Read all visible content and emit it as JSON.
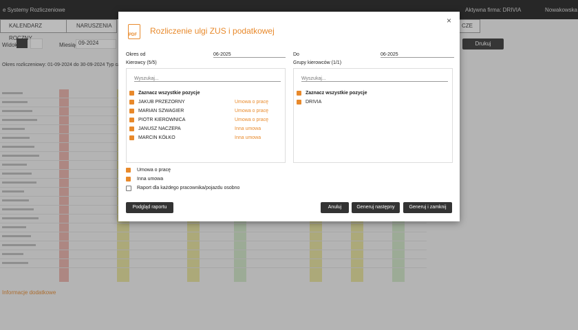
{
  "app": {
    "brand": "e Systemy Rozliczeniowe",
    "company": "Aktywna firma: DRIVIA",
    "user": "Nowakowska tra",
    "tabs": [
      "KALENDARZ ROCZNY",
      "NARUSZENIA",
      "CZE"
    ],
    "view_label": "Widok",
    "month_label": "Miesiąc",
    "month": "09-2024",
    "print": "Drukuj",
    "period": "Okres rozliczeniowy:   01-09-2024 do 30-09-2024   Typ ca",
    "info": "Informacje dodatkowe"
  },
  "modal": {
    "icon": "PDF",
    "title": "Rozliczenie ulgi ZUS i podatkowej",
    "from_label": "Okres od",
    "from": "06-2025",
    "to_label": "Do",
    "to": "06-2025",
    "drivers": {
      "label": "Kierowcy (5/5)",
      "search": "Wyszukaj...",
      "select_all": "Zaznacz wszystkie pozycje",
      "items": [
        {
          "name": "JAKUB PRZEZORNY",
          "contract": "Umowa o pracę"
        },
        {
          "name": "MARIAN SZWAGIER",
          "contract": "Umowa o pracę"
        },
        {
          "name": "PIOTR KIEROWNICA",
          "contract": "Umowa o pracę"
        },
        {
          "name": "JANUSZ NACZEPA",
          "contract": "Inna umowa"
        },
        {
          "name": "MARCIN KÓŁKO",
          "contract": "Inna umowa"
        }
      ]
    },
    "groups": {
      "label": "Grupy kierowców (1/1)",
      "search": "Wyszukaj...",
      "select_all": "Zaznacz wszystkie pozycje",
      "items": [
        {
          "name": "DRIVIA"
        }
      ]
    },
    "options": [
      {
        "label": "Umowa o pracę",
        "checked": true
      },
      {
        "label": "Inna umowa",
        "checked": true
      },
      {
        "label": "Raport dla każdego pracownika/pojazdu osobno",
        "checked": false
      }
    ],
    "buttons": {
      "preview": "Podgląd raportu",
      "cancel": "Anuluj",
      "next": "Generuj następny",
      "close": "Generuj i zamknij"
    }
  }
}
